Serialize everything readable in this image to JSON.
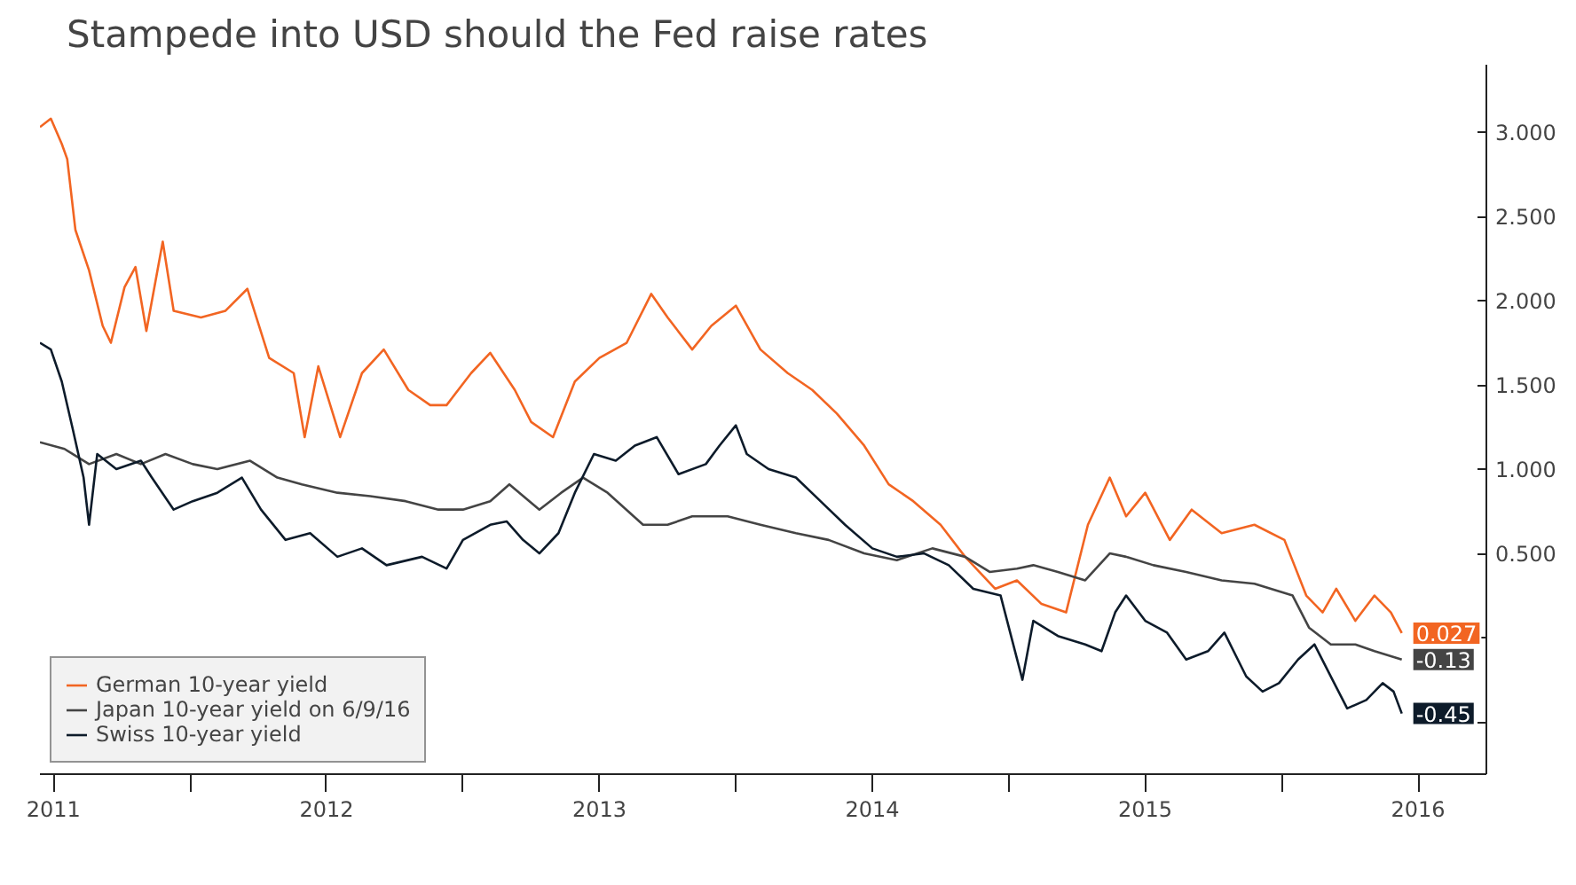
{
  "chart_data": {
    "type": "line",
    "title": "Stampede into USD should the Fed raise rates",
    "xlim": [
      2011.45,
      2016.75
    ],
    "ylim": [
      -0.81,
      3.4
    ],
    "xticks": [
      {
        "value": 2012,
        "label": null
      },
      {
        "value": 2013,
        "label": null
      },
      {
        "value": 2014,
        "label": null
      },
      {
        "value": 2015,
        "label": null
      },
      {
        "value": 2016,
        "label": null
      },
      {
        "value": 2011.5,
        "label": "2011"
      },
      {
        "value": 2012.5,
        "label": "2012"
      },
      {
        "value": 2013.5,
        "label": "2013"
      },
      {
        "value": 2014.5,
        "label": "2014"
      },
      {
        "value": 2015.5,
        "label": "2015"
      },
      {
        "value": 2016.5,
        "label": "2016"
      }
    ],
    "yticks": [
      {
        "value": -0.5,
        "label": null
      },
      {
        "value": 0,
        "label": null
      },
      {
        "value": 0.5,
        "label": "0.500"
      },
      {
        "value": 1,
        "label": "1.000"
      },
      {
        "value": 1.5,
        "label": "1.500"
      },
      {
        "value": 2,
        "label": "2.000"
      },
      {
        "value": 2.5,
        "label": "2.500"
      },
      {
        "value": 3,
        "label": "3.000"
      }
    ],
    "grid": false,
    "legend": "bottom left",
    "line_style": "solid",
    "series": [
      {
        "name": "German 10-year yield",
        "color": "#f26522",
        "x": [
          2011.45,
          2011.49,
          2011.53,
          2011.55,
          2011.58,
          2011.63,
          2011.68,
          2011.71,
          2011.76,
          2011.8,
          2011.84,
          2011.9,
          2011.94,
          2012.04,
          2012.13,
          2012.21,
          2012.29,
          2012.38,
          2012.42,
          2012.47,
          2012.55,
          2012.63,
          2012.71,
          2012.8,
          2012.88,
          2012.94,
          2013.03,
          2013.1,
          2013.19,
          2013.25,
          2013.33,
          2013.41,
          2013.5,
          2013.6,
          2013.69,
          2013.75,
          2013.84,
          2013.91,
          2014.0,
          2014.09,
          2014.19,
          2014.28,
          2014.37,
          2014.47,
          2014.56,
          2014.65,
          2014.75,
          2014.84,
          2014.95,
          2015.03,
          2015.12,
          2015.21,
          2015.29,
          2015.37,
          2015.43,
          2015.5,
          2015.59,
          2015.67,
          2015.78,
          2015.9,
          2016.01,
          2016.09,
          2016.15,
          2016.2,
          2016.27,
          2016.34,
          2016.4,
          2016.44
        ],
        "values": [
          3.03,
          3.08,
          2.93,
          2.84,
          2.42,
          2.18,
          1.85,
          1.75,
          2.08,
          2.2,
          1.82,
          2.35,
          1.94,
          1.9,
          1.94,
          2.07,
          1.66,
          1.57,
          1.19,
          1.61,
          1.19,
          1.57,
          1.71,
          1.47,
          1.38,
          1.38,
          1.57,
          1.69,
          1.47,
          1.28,
          1.19,
          1.52,
          1.66,
          1.75,
          2.04,
          1.9,
          1.71,
          1.85,
          1.97,
          1.71,
          1.57,
          1.47,
          1.33,
          1.14,
          0.91,
          0.81,
          0.67,
          0.48,
          0.29,
          0.34,
          0.2,
          0.15,
          0.67,
          0.95,
          0.72,
          0.86,
          0.58,
          0.76,
          0.62,
          0.67,
          0.58,
          0.25,
          0.15,
          0.29,
          0.1,
          0.25,
          0.15,
          0.027
        ],
        "value_labels": [
          null,
          null,
          null,
          null,
          null,
          null,
          null,
          null,
          null,
          null,
          null,
          null,
          null,
          null,
          null,
          null,
          null,
          null,
          null,
          null,
          null,
          null,
          null,
          null,
          null,
          null,
          null,
          null,
          null,
          null,
          null,
          null,
          null,
          null,
          null,
          null,
          null,
          null,
          null,
          null,
          null,
          null,
          null,
          null,
          null,
          null,
          null,
          null,
          null,
          null,
          null,
          null,
          null,
          null,
          null,
          null,
          null,
          null,
          null,
          null,
          null,
          null,
          null,
          null,
          null,
          null,
          null,
          "0.027"
        ]
      },
      {
        "name": "Japan 10-year yield on 6/9/16",
        "color": "#444444",
        "x": [
          2011.45,
          2011.54,
          2011.63,
          2011.73,
          2011.82,
          2011.91,
          2012.01,
          2012.1,
          2012.22,
          2012.32,
          2012.41,
          2012.54,
          2012.66,
          2012.79,
          2012.91,
          2013.0,
          2013.1,
          2013.17,
          2013.28,
          2013.36,
          2013.44,
          2013.53,
          2013.66,
          2013.75,
          2013.84,
          2013.97,
          2014.09,
          2014.22,
          2014.34,
          2014.47,
          2014.59,
          2014.72,
          2014.84,
          2014.93,
          2015.03,
          2015.09,
          2015.18,
          2015.28,
          2015.37,
          2015.43,
          2015.53,
          2015.65,
          2015.78,
          2015.9,
          2016.04,
          2016.1,
          2016.18,
          2016.27,
          2016.34,
          2016.44
        ],
        "values": [
          1.16,
          1.12,
          1.03,
          1.09,
          1.03,
          1.09,
          1.03,
          1.0,
          1.05,
          0.95,
          0.91,
          0.86,
          0.84,
          0.81,
          0.76,
          0.76,
          0.81,
          0.91,
          0.76,
          0.86,
          0.95,
          0.86,
          0.67,
          0.67,
          0.72,
          0.72,
          0.67,
          0.62,
          0.58,
          0.5,
          0.46,
          0.53,
          0.48,
          0.39,
          0.41,
          0.43,
          0.39,
          0.34,
          0.5,
          0.48,
          0.43,
          0.39,
          0.34,
          0.32,
          0.25,
          0.06,
          -0.04,
          -0.04,
          -0.08,
          -0.13
        ],
        "value_labels": [
          null,
          null,
          null,
          null,
          null,
          null,
          null,
          null,
          null,
          null,
          null,
          null,
          null,
          null,
          null,
          null,
          null,
          null,
          null,
          null,
          null,
          null,
          null,
          null,
          null,
          null,
          null,
          null,
          null,
          null,
          null,
          null,
          null,
          null,
          null,
          null,
          null,
          null,
          null,
          null,
          null,
          null,
          null,
          null,
          null,
          null,
          null,
          null,
          null,
          "-0.13"
        ]
      },
      {
        "name": "Swiss 10-year yield",
        "color": "#0d1b2a",
        "x": [
          2011.45,
          2011.49,
          2011.53,
          2011.57,
          2011.61,
          2011.63,
          2011.66,
          2011.73,
          2011.82,
          2011.86,
          2011.94,
          2012.01,
          2012.1,
          2012.19,
          2012.26,
          2012.35,
          2012.44,
          2012.54,
          2012.63,
          2012.72,
          2012.85,
          2012.94,
          2013.0,
          2013.1,
          2013.16,
          2013.22,
          2013.28,
          2013.35,
          2013.41,
          2013.48,
          2013.56,
          2013.63,
          2013.71,
          2013.79,
          2013.89,
          2013.94,
          2014.0,
          2014.04,
          2014.12,
          2014.22,
          2014.31,
          2014.4,
          2014.5,
          2014.59,
          2014.69,
          2014.78,
          2014.87,
          2014.97,
          2015.05,
          2015.09,
          2015.18,
          2015.28,
          2015.34,
          2015.39,
          2015.43,
          2015.5,
          2015.58,
          2015.65,
          2015.73,
          2015.79,
          2015.87,
          2015.93,
          2015.99,
          2016.06,
          2016.12,
          2016.18,
          2016.24,
          2016.31,
          2016.37,
          2016.41,
          2016.44
        ],
        "values": [
          1.75,
          1.71,
          1.52,
          1.24,
          0.95,
          0.67,
          1.09,
          1.0,
          1.05,
          0.95,
          0.76,
          0.81,
          0.86,
          0.95,
          0.76,
          0.58,
          0.62,
          0.48,
          0.53,
          0.43,
          0.48,
          0.41,
          0.58,
          0.67,
          0.69,
          0.58,
          0.5,
          0.62,
          0.86,
          1.09,
          1.05,
          1.14,
          1.19,
          0.97,
          1.03,
          1.14,
          1.26,
          1.09,
          1.0,
          0.95,
          0.81,
          0.67,
          0.53,
          0.48,
          0.5,
          0.43,
          0.29,
          0.25,
          -0.25,
          0.1,
          0.01,
          -0.04,
          -0.08,
          0.15,
          0.25,
          0.1,
          0.03,
          -0.13,
          -0.08,
          0.03,
          -0.23,
          -0.32,
          -0.27,
          -0.13,
          -0.04,
          -0.23,
          -0.42,
          -0.37,
          -0.27,
          -0.32,
          -0.45
        ],
        "value_labels": [
          null,
          null,
          null,
          null,
          null,
          null,
          null,
          null,
          null,
          null,
          null,
          null,
          null,
          null,
          null,
          null,
          null,
          null,
          null,
          null,
          null,
          null,
          null,
          null,
          null,
          null,
          null,
          null,
          null,
          null,
          null,
          null,
          null,
          null,
          null,
          null,
          null,
          null,
          null,
          null,
          null,
          null,
          null,
          null,
          null,
          null,
          null,
          null,
          null,
          null,
          null,
          null,
          null,
          null,
          null,
          null,
          null,
          null,
          null,
          null,
          null,
          null,
          null,
          null,
          null,
          null,
          null,
          null,
          null,
          null,
          "-0.45"
        ]
      }
    ]
  }
}
